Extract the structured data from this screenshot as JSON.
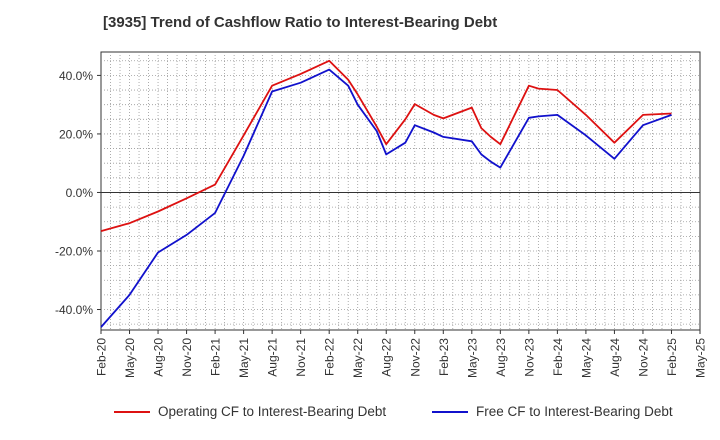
{
  "chart_data": {
    "type": "line",
    "title": "[3935]  Trend of Cashflow Ratio to Interest-Bearing Debt",
    "xlabel": "",
    "ylabel": "",
    "x": [
      "Feb-20",
      "May-20",
      "Aug-20",
      "Nov-20",
      "Feb-21",
      "May-21",
      "Aug-21",
      "Nov-21",
      "Feb-22",
      "May-22",
      "Aug-22",
      "Nov-22",
      "Feb-23",
      "May-23",
      "Aug-23",
      "Nov-23",
      "Feb-24",
      "May-24",
      "Aug-24",
      "Nov-24",
      "Feb-25",
      "May-25"
    ],
    "y_ticks": [
      "40.0%",
      "20.0%",
      "0.0%",
      "-20.0%",
      "-40.0%"
    ],
    "ylim": [
      -47,
      48
    ],
    "grid": true,
    "legend_position": "bottom",
    "series": [
      {
        "name": "Operating CF to Interest-Bearing Debt",
        "color": "#dd1111",
        "values": [
          -13.2,
          -10.5,
          -6.5,
          -2.0,
          2.7,
          19.5,
          36.5,
          40.5,
          45.0,
          33.5,
          16.5,
          30.2,
          25.3,
          29.0,
          16.5,
          36.5,
          35.0,
          26.5,
          17.0,
          26.5,
          27.0,
          null
        ],
        "extra_points": [
          {
            "x": "Apr-22",
            "y": 38.5
          },
          {
            "x": "Jul-22",
            "y": 22.5
          },
          {
            "x": "Oct-22",
            "y": 25.0
          },
          {
            "x": "Jan-23",
            "y": 26.5
          },
          {
            "x": "Jun-23",
            "y": 22.0
          },
          {
            "x": "Jul-23",
            "y": 19.0
          },
          {
            "x": "Dec-23",
            "y": 35.5
          }
        ]
      },
      {
        "name": "Free CF to Interest-Bearing Debt",
        "color": "#1111cc",
        "values": [
          -46.0,
          -35.0,
          -20.5,
          -14.5,
          -7.0,
          12.5,
          34.5,
          37.5,
          42.0,
          30.0,
          13.0,
          23.0,
          19.0,
          17.5,
          8.5,
          25.5,
          26.5,
          19.5,
          11.5,
          23.0,
          26.5,
          null
        ],
        "extra_points": [
          {
            "x": "Apr-22",
            "y": 36.5
          },
          {
            "x": "Jul-22",
            "y": 21.0
          },
          {
            "x": "Oct-22",
            "y": 17.0
          },
          {
            "x": "Jan-23",
            "y": 20.5
          },
          {
            "x": "Jun-23",
            "y": 13.0
          },
          {
            "x": "Jul-23",
            "y": 10.5
          },
          {
            "x": "Dec-23",
            "y": 26.0
          }
        ]
      }
    ]
  }
}
